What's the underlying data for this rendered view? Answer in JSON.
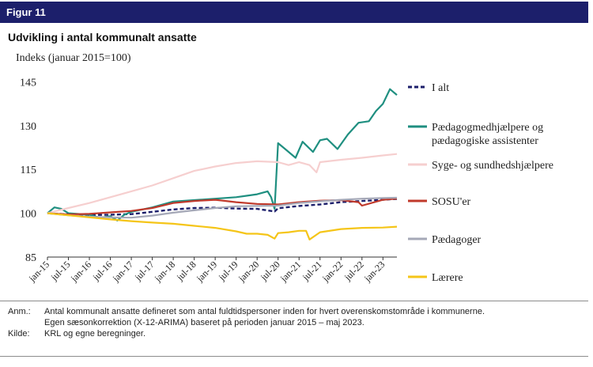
{
  "figure_label": "Figur 11",
  "title": "Udvikling i antal kommunalt ansatte",
  "notes": {
    "anm_label": "Anm.:",
    "anm_line1": "Antal kommunalt ansatte defineret som antal fuldtidspersoner inden for hvert overenskomstområde i kommunerne.",
    "anm_line2": "Egen sæsonkorrektion (X-12-ARIMA) baseret på perioden januar 2015 – maj 2023.",
    "kilde_label": "Kilde:",
    "kilde_text": "KRL og egne beregninger."
  },
  "chart_data": {
    "type": "line",
    "ylabel": "Indeks (januar 2015=100)",
    "xlabel": "",
    "ylim": [
      85,
      150
    ],
    "yticks": [
      85,
      100,
      115,
      130,
      145
    ],
    "grid": false,
    "legend_position": "right",
    "x_labels": [
      "jan-15",
      "jul-15",
      "jan-16",
      "jul-16",
      "jan-17",
      "jul-17",
      "jan-18",
      "jul-18",
      "jan-19",
      "jul-19",
      "jan-20",
      "jul-20",
      "jan-21",
      "jul-21",
      "jan-22",
      "jul-22",
      "jan-23"
    ],
    "x_dates": [
      "2015-01",
      "2015-07",
      "2016-01",
      "2016-07",
      "2017-01",
      "2017-07",
      "2018-01",
      "2018-07",
      "2019-01",
      "2019-07",
      "2020-01",
      "2020-07",
      "2021-01",
      "2021-07",
      "2022-01",
      "2022-07",
      "2023-01"
    ],
    "x_end": "2023-05",
    "series": [
      {
        "name": "I alt",
        "color": "#1c1f6b",
        "dashed": true,
        "x": [
          "2015-01",
          "2015-07",
          "2016-01",
          "2016-07",
          "2017-01",
          "2017-07",
          "2018-01",
          "2018-07",
          "2019-01",
          "2019-07",
          "2020-01",
          "2020-05",
          "2020-06",
          "2020-07",
          "2021-01",
          "2021-07",
          "2022-01",
          "2022-07",
          "2023-01",
          "2023-05"
        ],
        "values": [
          100,
          99.6,
          99.4,
          99.5,
          99.7,
          100.5,
          101.3,
          101.8,
          101.9,
          101.6,
          101.5,
          100.8,
          100.6,
          101.7,
          102.5,
          103.0,
          103.8,
          104.2,
          104.6,
          104.9
        ]
      },
      {
        "name": "Pædagogmedhjælpere og pædagogiske assistenter",
        "color": "#1f8f80",
        "dashed": false,
        "x": [
          "2015-01",
          "2015-03",
          "2015-05",
          "2015-07",
          "2016-01",
          "2016-04",
          "2016-07",
          "2016-09",
          "2016-11",
          "2017-01",
          "2017-07",
          "2018-01",
          "2018-07",
          "2019-01",
          "2019-07",
          "2019-10",
          "2020-01",
          "2020-04",
          "2020-05",
          "2020-06",
          "2020-07",
          "2020-09",
          "2020-12",
          "2021-02",
          "2021-05",
          "2021-07",
          "2021-09",
          "2021-12",
          "2022-03",
          "2022-06",
          "2022-09",
          "2022-11",
          "2023-01",
          "2023-03",
          "2023-05"
        ],
        "values": [
          100,
          102,
          101.5,
          100,
          99.5,
          98.5,
          99,
          97.5,
          99.5,
          100.5,
          102,
          104,
          104.5,
          105,
          105.5,
          106,
          106.5,
          107.5,
          105.5,
          101.5,
          124,
          122,
          119,
          124.5,
          121,
          125,
          125.5,
          122,
          127,
          131,
          131.5,
          135,
          137.5,
          142.5,
          140.5
        ]
      },
      {
        "name": "Syge- og sundhedshjælpere",
        "color": "#f6cfcf",
        "dashed": false,
        "x": [
          "2015-01",
          "2015-07",
          "2016-01",
          "2016-07",
          "2017-01",
          "2017-07",
          "2018-01",
          "2018-07",
          "2019-01",
          "2019-07",
          "2020-01",
          "2020-07",
          "2020-10",
          "2021-01",
          "2021-04",
          "2021-06",
          "2021-07",
          "2022-01",
          "2022-07",
          "2023-01",
          "2023-05"
        ],
        "values": [
          100,
          101.8,
          103.5,
          105.5,
          107.5,
          109.5,
          112,
          114.5,
          116,
          117.2,
          117.8,
          117.5,
          116.5,
          117.5,
          116.5,
          114,
          117.5,
          118.3,
          119,
          119.8,
          120.3
        ]
      },
      {
        "name": "SOSU'er",
        "color": "#c0392b",
        "dashed": false,
        "x": [
          "2015-01",
          "2015-07",
          "2016-01",
          "2016-07",
          "2017-01",
          "2017-07",
          "2018-01",
          "2018-07",
          "2019-01",
          "2019-07",
          "2020-01",
          "2020-07",
          "2021-01",
          "2021-07",
          "2022-01",
          "2022-06",
          "2022-07",
          "2023-01",
          "2023-05"
        ],
        "values": [
          100,
          99.6,
          99.8,
          100.3,
          100.8,
          101.8,
          103.5,
          104.2,
          104.6,
          103.8,
          103.2,
          103.0,
          103.8,
          104.3,
          104.5,
          103.8,
          102.6,
          104.6,
          105.0
        ]
      },
      {
        "name": "Pædagoger",
        "color": "#a5a8b7",
        "dashed": false,
        "x": [
          "2015-01",
          "2015-07",
          "2016-01",
          "2016-07",
          "2017-01",
          "2017-07",
          "2018-01",
          "2018-07",
          "2019-01",
          "2019-07",
          "2020-01",
          "2020-07",
          "2021-01",
          "2021-07",
          "2022-01",
          "2022-07",
          "2023-01",
          "2023-05"
        ],
        "values": [
          100,
          99.3,
          98.8,
          98.6,
          98.5,
          99.2,
          100.2,
          101.0,
          101.8,
          102.4,
          102.5,
          102.6,
          103.5,
          104.1,
          104.6,
          105.0,
          105.2,
          105.3
        ]
      },
      {
        "name": "Lærere",
        "color": "#f5c518",
        "dashed": false,
        "x": [
          "2015-01",
          "2015-07",
          "2016-01",
          "2016-07",
          "2017-01",
          "2017-07",
          "2018-01",
          "2018-07",
          "2019-01",
          "2019-07",
          "2019-10",
          "2020-01",
          "2020-04",
          "2020-06",
          "2020-07",
          "2020-10",
          "2021-01",
          "2021-03",
          "2021-04",
          "2021-07",
          "2022-01",
          "2022-07",
          "2023-01",
          "2023-05"
        ],
        "values": [
          100,
          99.3,
          98.6,
          97.9,
          97.3,
          96.8,
          96.4,
          95.7,
          95.0,
          93.8,
          93.0,
          93.0,
          92.6,
          91.3,
          93.2,
          93.5,
          94.0,
          94.0,
          91.0,
          93.5,
          94.6,
          95.0,
          95.1,
          95.4
        ]
      }
    ]
  }
}
